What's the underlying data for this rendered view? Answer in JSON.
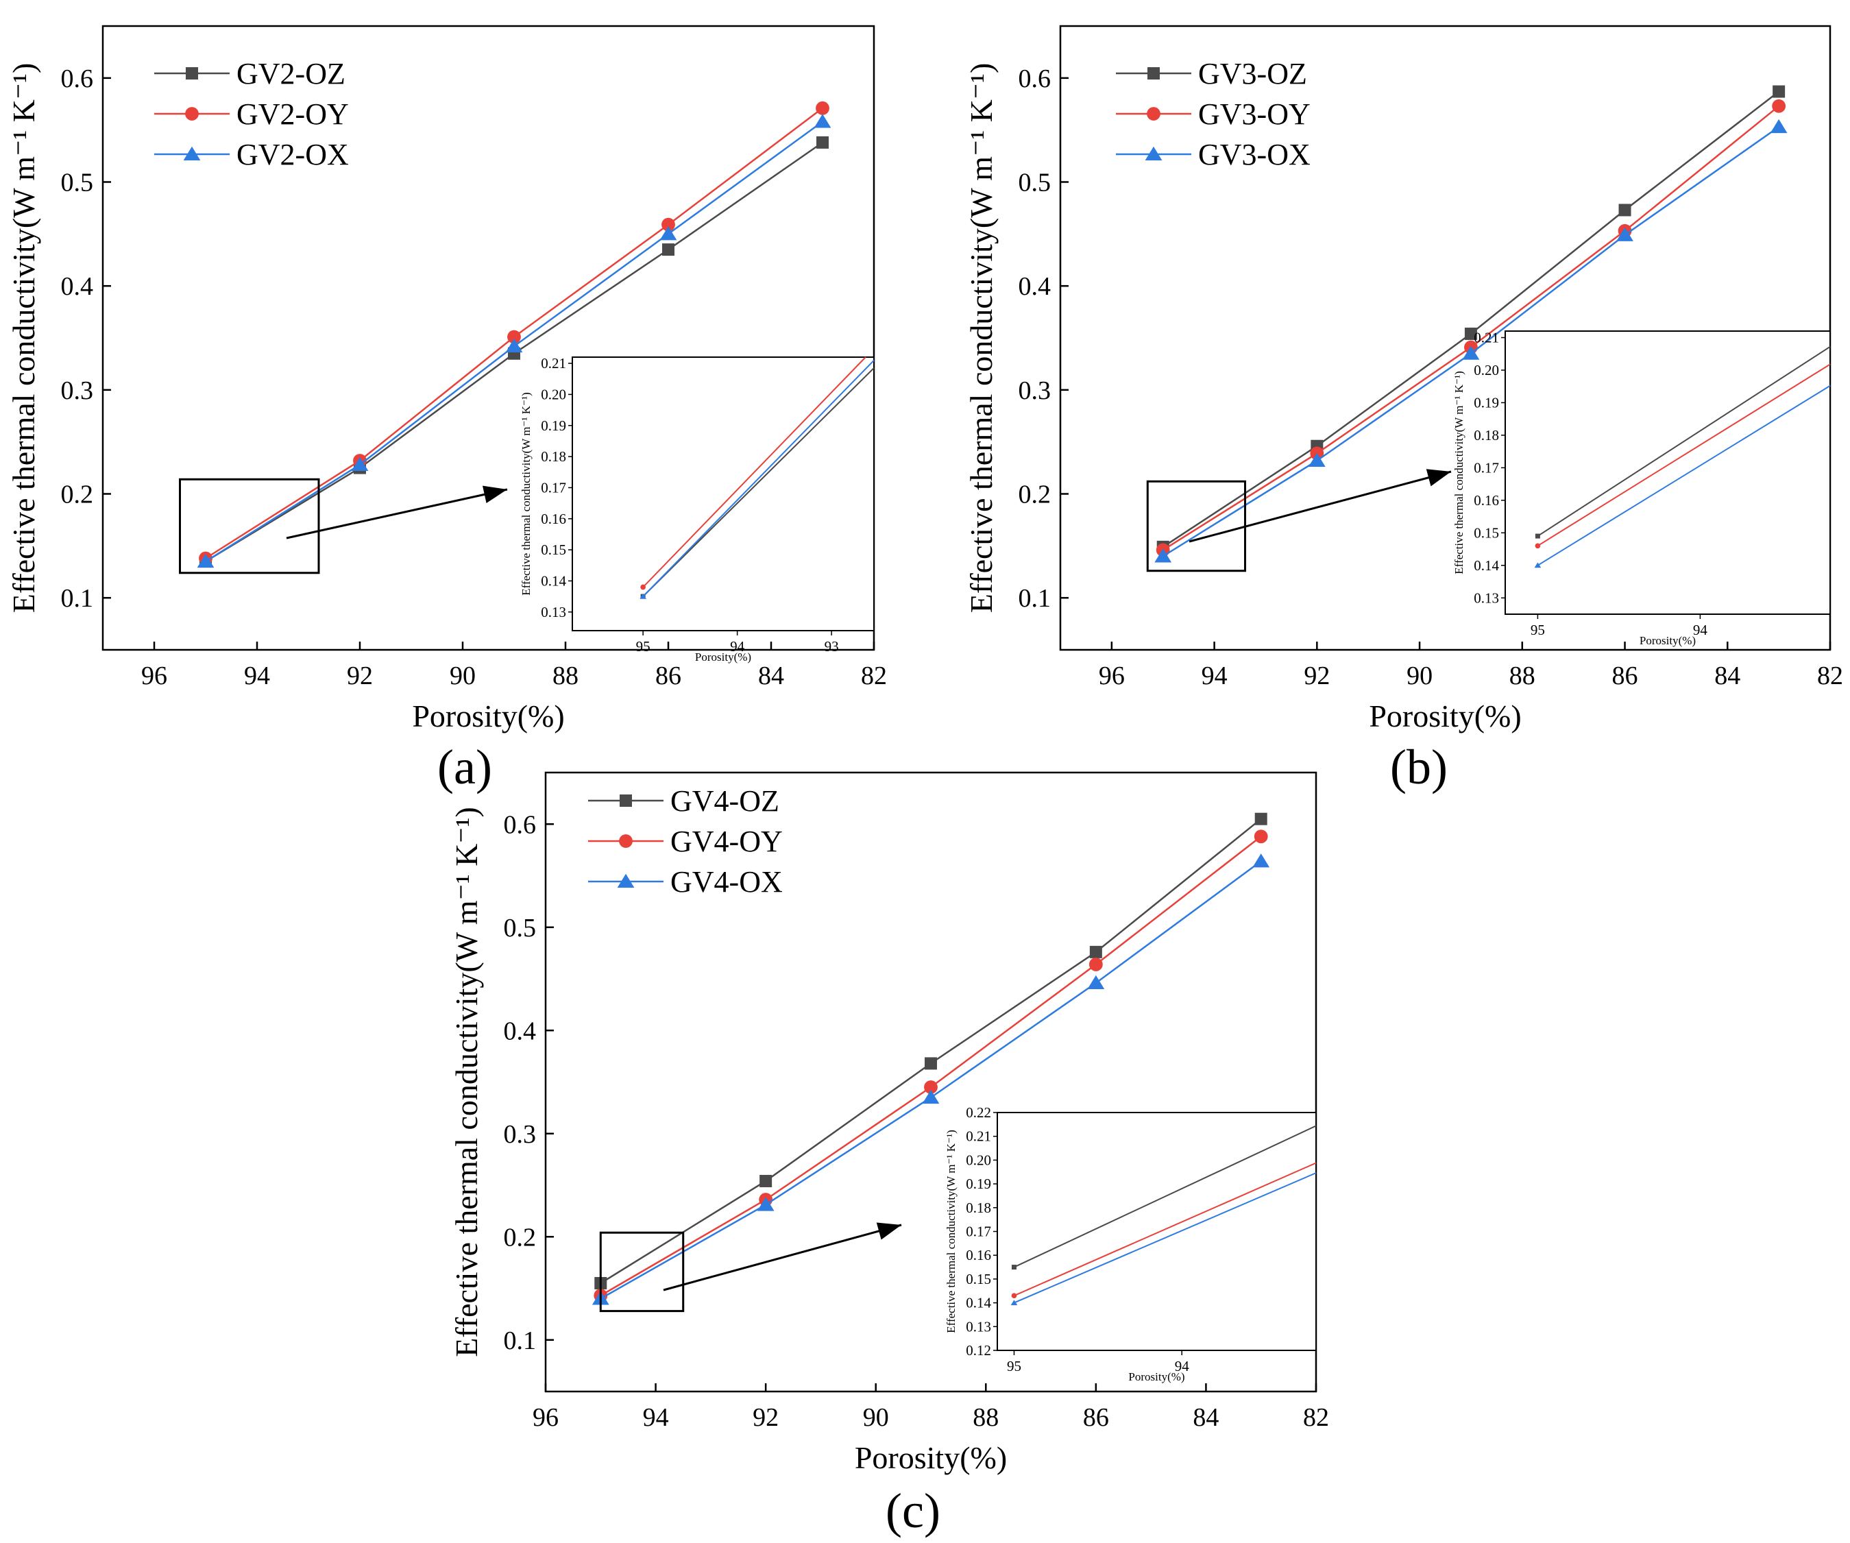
{
  "figure": {
    "panels": [
      "(a)",
      "(b)",
      "(c)"
    ],
    "colors": {
      "OZ": "#4a4a4a",
      "OY": "#e8413a",
      "OX": "#2e7be0",
      "axis": "#000000"
    },
    "markers": {
      "OZ": "square",
      "OY": "circle",
      "OX": "triangle"
    }
  },
  "chart_data": [
    {
      "type": "line",
      "panel": "(a)",
      "xlabel": "Porosity(%)",
      "ylabel": "Effective thermal conductivity(W m⁻¹ K⁻¹)",
      "xlim": [
        97,
        82
      ],
      "ylim": [
        0.05,
        0.65
      ],
      "xticks": [
        96,
        94,
        92,
        90,
        88,
        86,
        84,
        82
      ],
      "yticks": [
        0.1,
        0.2,
        0.3,
        0.4,
        0.5,
        0.6
      ],
      "x": [
        95,
        92,
        89,
        86,
        83
      ],
      "series": [
        {
          "name": "GV2-OZ",
          "values": [
            0.135,
            0.225,
            0.335,
            0.435,
            0.538
          ]
        },
        {
          "name": "GV2-OY",
          "values": [
            0.138,
            0.232,
            0.351,
            0.459,
            0.571
          ]
        },
        {
          "name": "GV2-OX",
          "values": [
            0.135,
            0.228,
            0.342,
            0.45,
            0.558
          ]
        }
      ],
      "legend": "top-left",
      "zoom_box": {
        "xlim": [
          95.5,
          92.8
        ],
        "ylim": [
          0.124,
          0.214
        ]
      },
      "inset": {
        "xlabel": "Porosity(%)",
        "ylabel": "Effective thermal conductivity(W m⁻¹ K⁻¹)",
        "xlim": [
          95.75,
          92.55
        ],
        "ylim": [
          0.124,
          0.212
        ],
        "xticks": [
          95,
          94,
          93
        ],
        "yticks": [
          0.13,
          0.14,
          0.15,
          0.16,
          0.17,
          0.18,
          0.19,
          0.2,
          0.21
        ]
      }
    },
    {
      "type": "line",
      "panel": "(b)",
      "xlabel": "Porosity(%)",
      "ylabel": "Effective thermal conductivity(W m⁻¹ K⁻¹)",
      "xlim": [
        97,
        82
      ],
      "ylim": [
        0.05,
        0.65
      ],
      "xticks": [
        96,
        94,
        92,
        90,
        88,
        86,
        84,
        82
      ],
      "yticks": [
        0.1,
        0.2,
        0.3,
        0.4,
        0.5,
        0.6
      ],
      "x": [
        95,
        92,
        89,
        86,
        83
      ],
      "series": [
        {
          "name": "GV3-OZ",
          "values": [
            0.149,
            0.246,
            0.354,
            0.473,
            0.587
          ]
        },
        {
          "name": "GV3-OY",
          "values": [
            0.146,
            0.239,
            0.341,
            0.453,
            0.573
          ]
        },
        {
          "name": "GV3-OX",
          "values": [
            0.14,
            0.232,
            0.335,
            0.449,
            0.553
          ]
        }
      ],
      "legend": "top-left",
      "zoom_box": {
        "xlim": [
          95.3,
          93.4
        ],
        "ylim": [
          0.126,
          0.212
        ]
      },
      "inset": {
        "xlabel": "Porosity(%)",
        "ylabel": "Effective thermal conductivity(W m⁻¹ K⁻¹)",
        "xlim": [
          95.2,
          93.2
        ],
        "ylim": [
          0.125,
          0.212
        ],
        "xticks": [
          95,
          94
        ],
        "yticks": [
          0.13,
          0.14,
          0.15,
          0.16,
          0.17,
          0.18,
          0.19,
          0.2,
          0.21
        ]
      }
    },
    {
      "type": "line",
      "panel": "(c)",
      "xlabel": "Porosity(%)",
      "ylabel": "Effective thermal conductivity(W m⁻¹ K⁻¹)",
      "xlim": [
        96,
        82
      ],
      "ylim": [
        0.05,
        0.65
      ],
      "xticks": [
        96,
        94,
        92,
        90,
        88,
        86,
        84,
        82
      ],
      "yticks": [
        0.1,
        0.2,
        0.3,
        0.4,
        0.5,
        0.6
      ],
      "x": [
        95,
        92,
        89,
        86,
        83
      ],
      "series": [
        {
          "name": "GV4-OZ",
          "values": [
            0.155,
            0.254,
            0.368,
            0.476,
            0.605
          ]
        },
        {
          "name": "GV4-OY",
          "values": [
            0.143,
            0.236,
            0.345,
            0.464,
            0.588
          ]
        },
        {
          "name": "GV4-OX",
          "values": [
            0.14,
            0.231,
            0.335,
            0.446,
            0.564
          ]
        }
      ],
      "legend": "top-left",
      "zoom_box": {
        "xlim": [
          95.0,
          93.5
        ],
        "ylim": [
          0.128,
          0.204
        ]
      },
      "inset": {
        "xlabel": "Porosity(%)",
        "ylabel": "Effective thermal conductivity(W m⁻¹ K⁻¹)",
        "xlim": [
          95.1,
          93.2
        ],
        "ylim": [
          0.12,
          0.22
        ],
        "xticks": [
          95,
          94
        ],
        "yticks": [
          0.12,
          0.13,
          0.14,
          0.15,
          0.16,
          0.17,
          0.18,
          0.19,
          0.2,
          0.21,
          0.22
        ]
      }
    }
  ]
}
